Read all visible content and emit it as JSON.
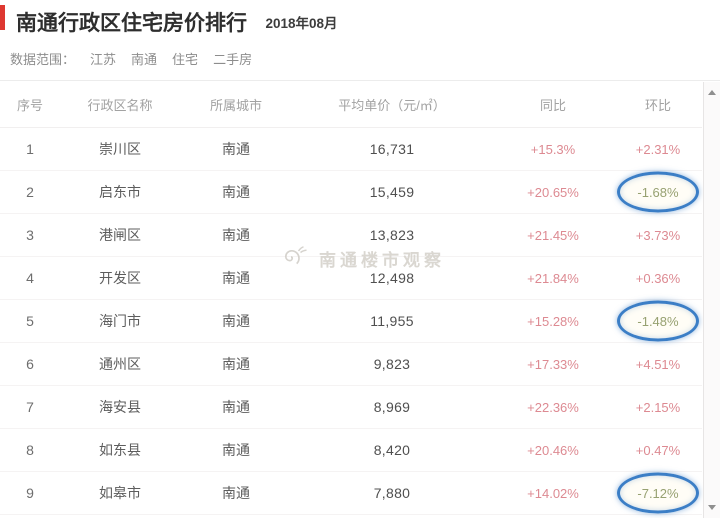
{
  "page": {
    "title": "南通行政区住宅房价排行",
    "date": "2018年08月",
    "scope_label": "数据范围：",
    "scope_tags": [
      "江苏",
      "南通",
      "住宅",
      "二手房"
    ],
    "watermark": "南通楼市观察"
  },
  "colors": {
    "accent_red_bar": "#de3831",
    "up_text": "#dd8a92",
    "down_text": "#97a171",
    "circle_blue": "#3b7ec6"
  },
  "table": {
    "columns": [
      "序号",
      "行政区名称",
      "所属城市",
      "平均单价（元/㎡）",
      "同比",
      "环比"
    ],
    "rows": [
      {
        "rank": "1",
        "district": "崇川区",
        "city": "南通",
        "price": "16,731",
        "yoy": "+15.3%",
        "mom": "+2.31%",
        "circled": false
      },
      {
        "rank": "2",
        "district": "启东市",
        "city": "南通",
        "price": "15,459",
        "yoy": "+20.65%",
        "mom": "-1.68%",
        "circled": true
      },
      {
        "rank": "3",
        "district": "港闸区",
        "city": "南通",
        "price": "13,823",
        "yoy": "+21.45%",
        "mom": "+3.73%",
        "circled": false
      },
      {
        "rank": "4",
        "district": "开发区",
        "city": "南通",
        "price": "12,498",
        "yoy": "+21.84%",
        "mom": "+0.36%",
        "circled": false
      },
      {
        "rank": "5",
        "district": "海门市",
        "city": "南通",
        "price": "11,955",
        "yoy": "+15.28%",
        "mom": "-1.48%",
        "circled": true
      },
      {
        "rank": "6",
        "district": "通州区",
        "city": "南通",
        "price": "9,823",
        "yoy": "+17.33%",
        "mom": "+4.51%",
        "circled": false
      },
      {
        "rank": "7",
        "district": "海安县",
        "city": "南通",
        "price": "8,969",
        "yoy": "+22.36%",
        "mom": "+2.15%",
        "circled": false
      },
      {
        "rank": "8",
        "district": "如东县",
        "city": "南通",
        "price": "8,420",
        "yoy": "+20.46%",
        "mom": "+0.47%",
        "circled": false
      },
      {
        "rank": "9",
        "district": "如皋市",
        "city": "南通",
        "price": "7,880",
        "yoy": "+14.02%",
        "mom": "-7.12%",
        "circled": true
      }
    ]
  }
}
